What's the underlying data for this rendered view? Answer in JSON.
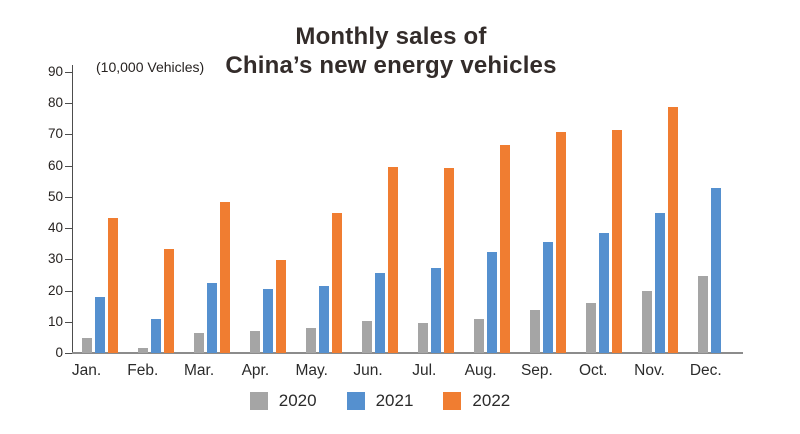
{
  "chart_data": {
    "type": "bar",
    "title": "Monthly sales of China’s new energy vehicles",
    "title_line1": "Monthly sales of",
    "title_line2": "China’s new energy vehicles",
    "unit_label": "(10,000 Vehicles)",
    "categories": [
      "Jan.",
      "Feb.",
      "Mar.",
      "Apr.",
      "May.",
      "Jun.",
      "Jul.",
      "Aug.",
      "Sep.",
      "Oct.",
      "Nov.",
      "Dec."
    ],
    "yticks": [
      0,
      10,
      20,
      30,
      40,
      50,
      60,
      70,
      80,
      90
    ],
    "ylim": [
      0,
      90
    ],
    "grid": false,
    "legend_position": "bottom",
    "series": [
      {
        "name": "2020",
        "color": "#a5a5a5",
        "values": [
          4.8,
          1.5,
          6.3,
          7.0,
          8.0,
          10.2,
          9.6,
          10.8,
          13.8,
          16.0,
          20.0,
          24.8
        ]
      },
      {
        "name": "2021",
        "color": "#5590cf",
        "values": [
          17.9,
          10.9,
          22.5,
          20.6,
          21.6,
          25.6,
          27.1,
          32.4,
          35.7,
          38.5,
          44.9,
          53.0
        ]
      },
      {
        "name": "2022",
        "color": "#f07d31",
        "values": [
          43.1,
          33.4,
          48.4,
          29.9,
          44.7,
          59.6,
          59.3,
          66.6,
          70.8,
          71.4,
          78.7,
          null
        ]
      }
    ]
  }
}
